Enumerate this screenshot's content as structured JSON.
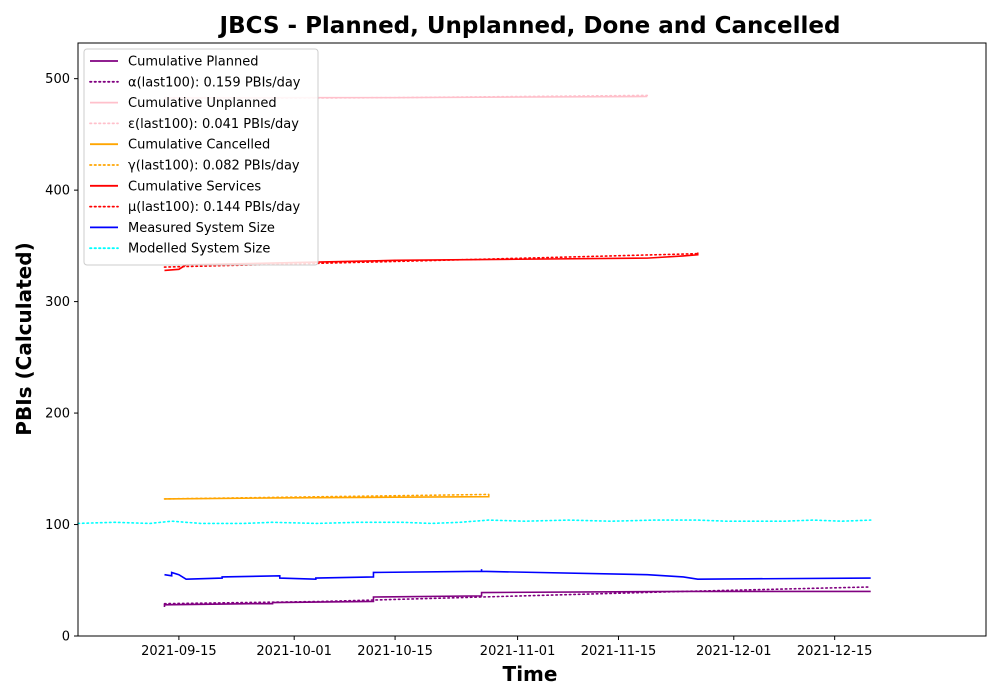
{
  "chart_data": {
    "type": "line",
    "title": "JBCS - Planned, Unplanned, Done  and Cancelled",
    "xlabel": "Time",
    "ylabel": "PBIs (Calculated)",
    "xlim": [
      "2021-09-01",
      "2022-01-05"
    ],
    "ylim": [
      0,
      532
    ],
    "xticks": [
      "2021-09-15",
      "2021-10-01",
      "2021-10-15",
      "2021-11-01",
      "2021-11-15",
      "2021-12-01",
      "2021-12-15"
    ],
    "yticks": [
      0,
      100,
      200,
      300,
      400,
      500
    ],
    "grid": false,
    "legend_position": "top-left",
    "series": [
      {
        "name": "Cumulative Planned",
        "style": "solid",
        "color": "#800080",
        "points": [
          [
            "2021-09-13",
            26
          ],
          [
            "2021-09-13",
            28
          ],
          [
            "2021-09-25",
            29
          ],
          [
            "2021-09-28",
            29
          ],
          [
            "2021-09-28",
            30
          ],
          [
            "2021-10-12",
            31
          ],
          [
            "2021-10-12",
            35
          ],
          [
            "2021-10-27",
            36
          ],
          [
            "2021-10-27",
            39
          ],
          [
            "2021-11-24",
            40
          ],
          [
            "2021-12-20",
            40
          ]
        ]
      },
      {
        "name": "α(last100): 0.159 PBIs/day",
        "style": "dotted",
        "color": "#800080",
        "points": [
          [
            "2021-09-13",
            29
          ],
          [
            "2021-10-05",
            31
          ],
          [
            "2021-10-27",
            35
          ],
          [
            "2021-11-24",
            40
          ],
          [
            "2021-12-20",
            44
          ]
        ]
      },
      {
        "name": "Cumulative Unplanned",
        "style": "solid",
        "color": "#ffc0cb",
        "points": [
          [
            "2021-09-13",
            483
          ],
          [
            "2021-10-15",
            483
          ],
          [
            "2021-11-19",
            484
          ]
        ]
      },
      {
        "name": "ε(last100): 0.041 PBIs/day",
        "style": "dotted",
        "color": "#ffc0cb",
        "points": [
          [
            "2021-09-13",
            482
          ],
          [
            "2021-10-15",
            483
          ],
          [
            "2021-11-19",
            485
          ]
        ]
      },
      {
        "name": "Cumulative Cancelled",
        "style": "solid",
        "color": "#ffa500",
        "points": [
          [
            "2021-09-13",
            123
          ],
          [
            "2021-10-01",
            124
          ],
          [
            "2021-10-15",
            124.5
          ],
          [
            "2021-10-28",
            125
          ],
          [
            "2021-10-28",
            127
          ]
        ]
      },
      {
        "name": "γ(last100): 0.082 PBIs/day",
        "style": "dotted",
        "color": "#ffa500",
        "points": [
          [
            "2021-09-13",
            123
          ],
          [
            "2021-10-28",
            127
          ]
        ]
      },
      {
        "name": "Cumulative Services",
        "style": "solid",
        "color": "#ff0000",
        "points": [
          [
            "2021-09-13",
            328
          ],
          [
            "2021-09-15",
            329
          ],
          [
            "2021-09-16",
            333
          ],
          [
            "2021-10-01",
            335
          ],
          [
            "2021-10-15",
            337
          ],
          [
            "2021-11-01",
            338
          ],
          [
            "2021-11-19",
            339
          ],
          [
            "2021-11-24",
            341
          ],
          [
            "2021-11-26",
            342
          ],
          [
            "2021-11-26",
            344
          ]
        ]
      },
      {
        "name": "μ(last100): 0.144 PBIs/day",
        "style": "dotted",
        "color": "#ff0000",
        "points": [
          [
            "2021-09-13",
            331
          ],
          [
            "2021-10-15",
            336
          ],
          [
            "2021-11-26",
            343
          ]
        ]
      },
      {
        "name": "Measured System Size",
        "style": "solid",
        "color": "#0000ff",
        "points": [
          [
            "2021-09-13",
            55
          ],
          [
            "2021-09-14",
            54
          ],
          [
            "2021-09-14",
            57
          ],
          [
            "2021-09-15",
            55
          ],
          [
            "2021-09-16",
            51
          ],
          [
            "2021-09-21",
            52
          ],
          [
            "2021-09-21",
            53
          ],
          [
            "2021-09-29",
            54
          ],
          [
            "2021-09-29",
            52
          ],
          [
            "2021-10-04",
            51
          ],
          [
            "2021-10-04",
            52
          ],
          [
            "2021-10-12",
            53
          ],
          [
            "2021-10-12",
            57
          ],
          [
            "2021-10-27",
            58
          ],
          [
            "2021-10-27",
            60
          ],
          [
            "2021-10-27",
            58
          ],
          [
            "2021-11-19",
            55
          ],
          [
            "2021-11-24",
            53
          ],
          [
            "2021-11-26",
            51
          ],
          [
            "2021-12-20",
            52
          ]
        ]
      },
      {
        "name": "Modelled System Size",
        "style": "dotted",
        "color": "#00ffff",
        "points": [
          [
            "2021-09-01",
            101
          ],
          [
            "2021-09-06",
            102
          ],
          [
            "2021-09-11",
            101
          ],
          [
            "2021-09-14",
            103
          ],
          [
            "2021-09-18",
            101
          ],
          [
            "2021-09-24",
            101
          ],
          [
            "2021-09-28",
            102
          ],
          [
            "2021-10-04",
            101
          ],
          [
            "2021-10-10",
            102
          ],
          [
            "2021-10-16",
            102
          ],
          [
            "2021-10-20",
            101
          ],
          [
            "2021-10-24",
            102
          ],
          [
            "2021-10-28",
            104
          ],
          [
            "2021-11-02",
            103
          ],
          [
            "2021-11-08",
            104
          ],
          [
            "2021-11-14",
            103
          ],
          [
            "2021-11-20",
            104
          ],
          [
            "2021-11-26",
            104
          ],
          [
            "2021-11-30",
            103
          ],
          [
            "2021-12-04",
            103
          ],
          [
            "2021-12-08",
            103
          ],
          [
            "2021-12-12",
            104
          ],
          [
            "2021-12-16",
            103
          ],
          [
            "2021-12-20",
            104
          ]
        ]
      }
    ]
  }
}
